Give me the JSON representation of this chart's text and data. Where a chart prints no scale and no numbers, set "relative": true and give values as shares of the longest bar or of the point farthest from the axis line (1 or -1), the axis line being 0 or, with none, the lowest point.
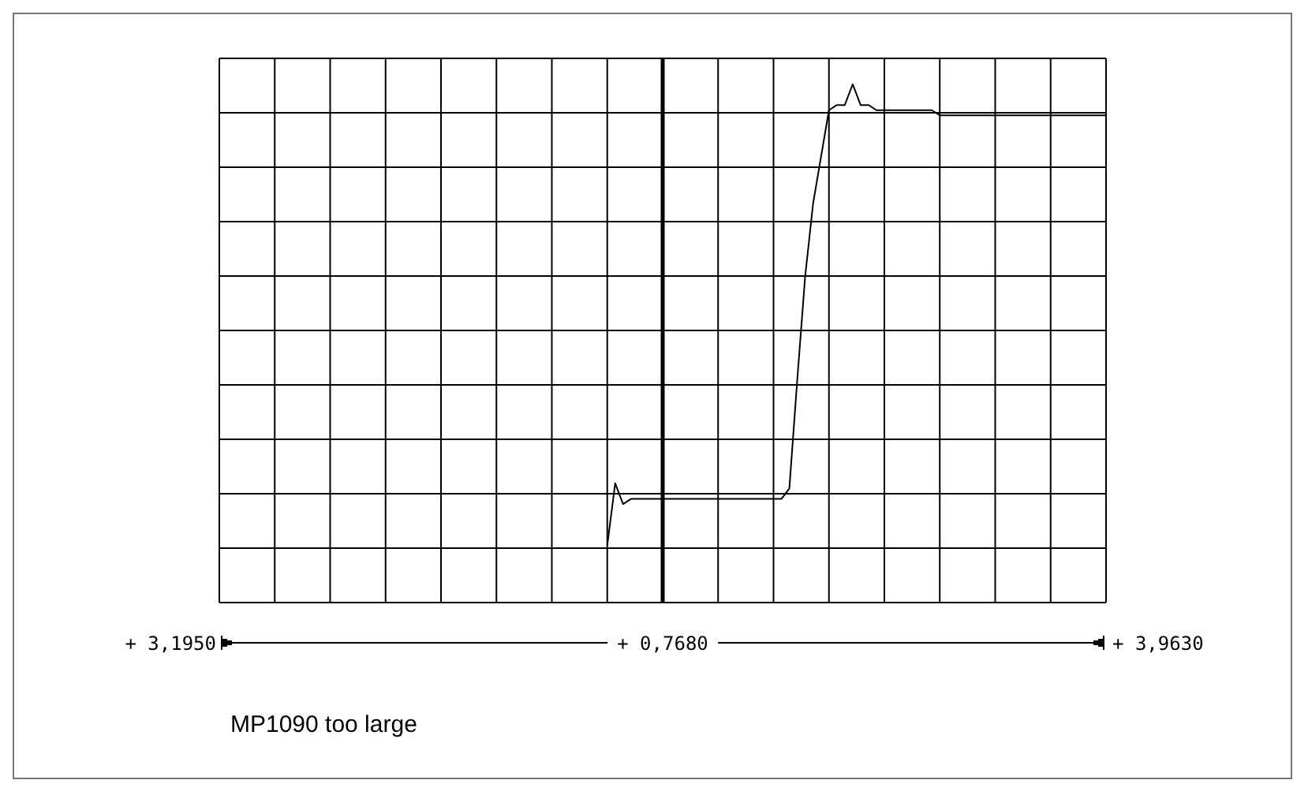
{
  "chart_data": {
    "type": "line",
    "relative": true,
    "categories": [
      null,
      null,
      null,
      null,
      null,
      null,
      null,
      null,
      null,
      null,
      null,
      null,
      null,
      null,
      null,
      null,
      null,
      null,
      null,
      null,
      null,
      null,
      null,
      null,
      null,
      null,
      null,
      null,
      null,
      null,
      null,
      null,
      null,
      null,
      null,
      null,
      null,
      null,
      null,
      null,
      null,
      null,
      null,
      null,
      null,
      null,
      null,
      null,
      null,
      null,
      null,
      null,
      null,
      null,
      null,
      null,
      null,
      null,
      null,
      null,
      null,
      null,
      null,
      null,
      null,
      null,
      null,
      null,
      null,
      null,
      null,
      null,
      null,
      null,
      null,
      null,
      null,
      null,
      null,
      null,
      null,
      null,
      null,
      null,
      null,
      null,
      null,
      null,
      null,
      null,
      null,
      null,
      null,
      null,
      null,
      null,
      null,
      null,
      null,
      null,
      null,
      null,
      null,
      null,
      null,
      null,
      null,
      null,
      null,
      null,
      null,
      null,
      null
    ],
    "values": [
      null,
      null,
      null,
      null,
      null,
      null,
      null,
      null,
      null,
      null,
      null,
      null,
      null,
      null,
      null,
      null,
      null,
      null,
      null,
      null,
      null,
      null,
      null,
      null,
      null,
      null,
      null,
      null,
      null,
      null,
      null,
      null,
      null,
      null,
      null,
      null,
      null,
      null,
      null,
      null,
      null,
      null,
      null,
      null,
      null,
      null,
      null,
      null,
      null,
      0.11,
      0.23,
      0.19,
      0.2,
      0.2,
      0.2,
      0.2,
      0.2,
      0.2,
      0.2,
      0.2,
      0.2,
      0.2,
      0.2,
      0.2,
      0.2,
      0.2,
      0.2,
      0.2,
      0.2,
      0.2,
      0.2,
      0.2,
      0.22,
      0.43,
      0.63,
      0.77,
      0.86,
      0.95,
      0.96,
      0.96,
      1,
      0.96,
      0.96,
      0.95,
      0.95,
      0.95,
      0.95,
      0.95,
      0.95,
      0.95,
      0.95,
      0.94,
      0.94,
      0.94,
      0.94,
      0.94,
      0.94,
      0.94,
      0.94,
      0.94,
      0.94,
      0.94,
      0.94,
      0.94,
      0.94,
      0.94,
      0.94,
      0.94,
      0.94,
      0.94,
      0.94,
      0.94,
      0.94
    ],
    "color": "#000000",
    "marker": "none",
    "line_style": "solid",
    "grid": true,
    "legend": false,
    "annotations": [
      "+ 3,1950",
      "+ 0,7680",
      "+ 3,9630",
      "MP1090 too large"
    ]
  }
}
